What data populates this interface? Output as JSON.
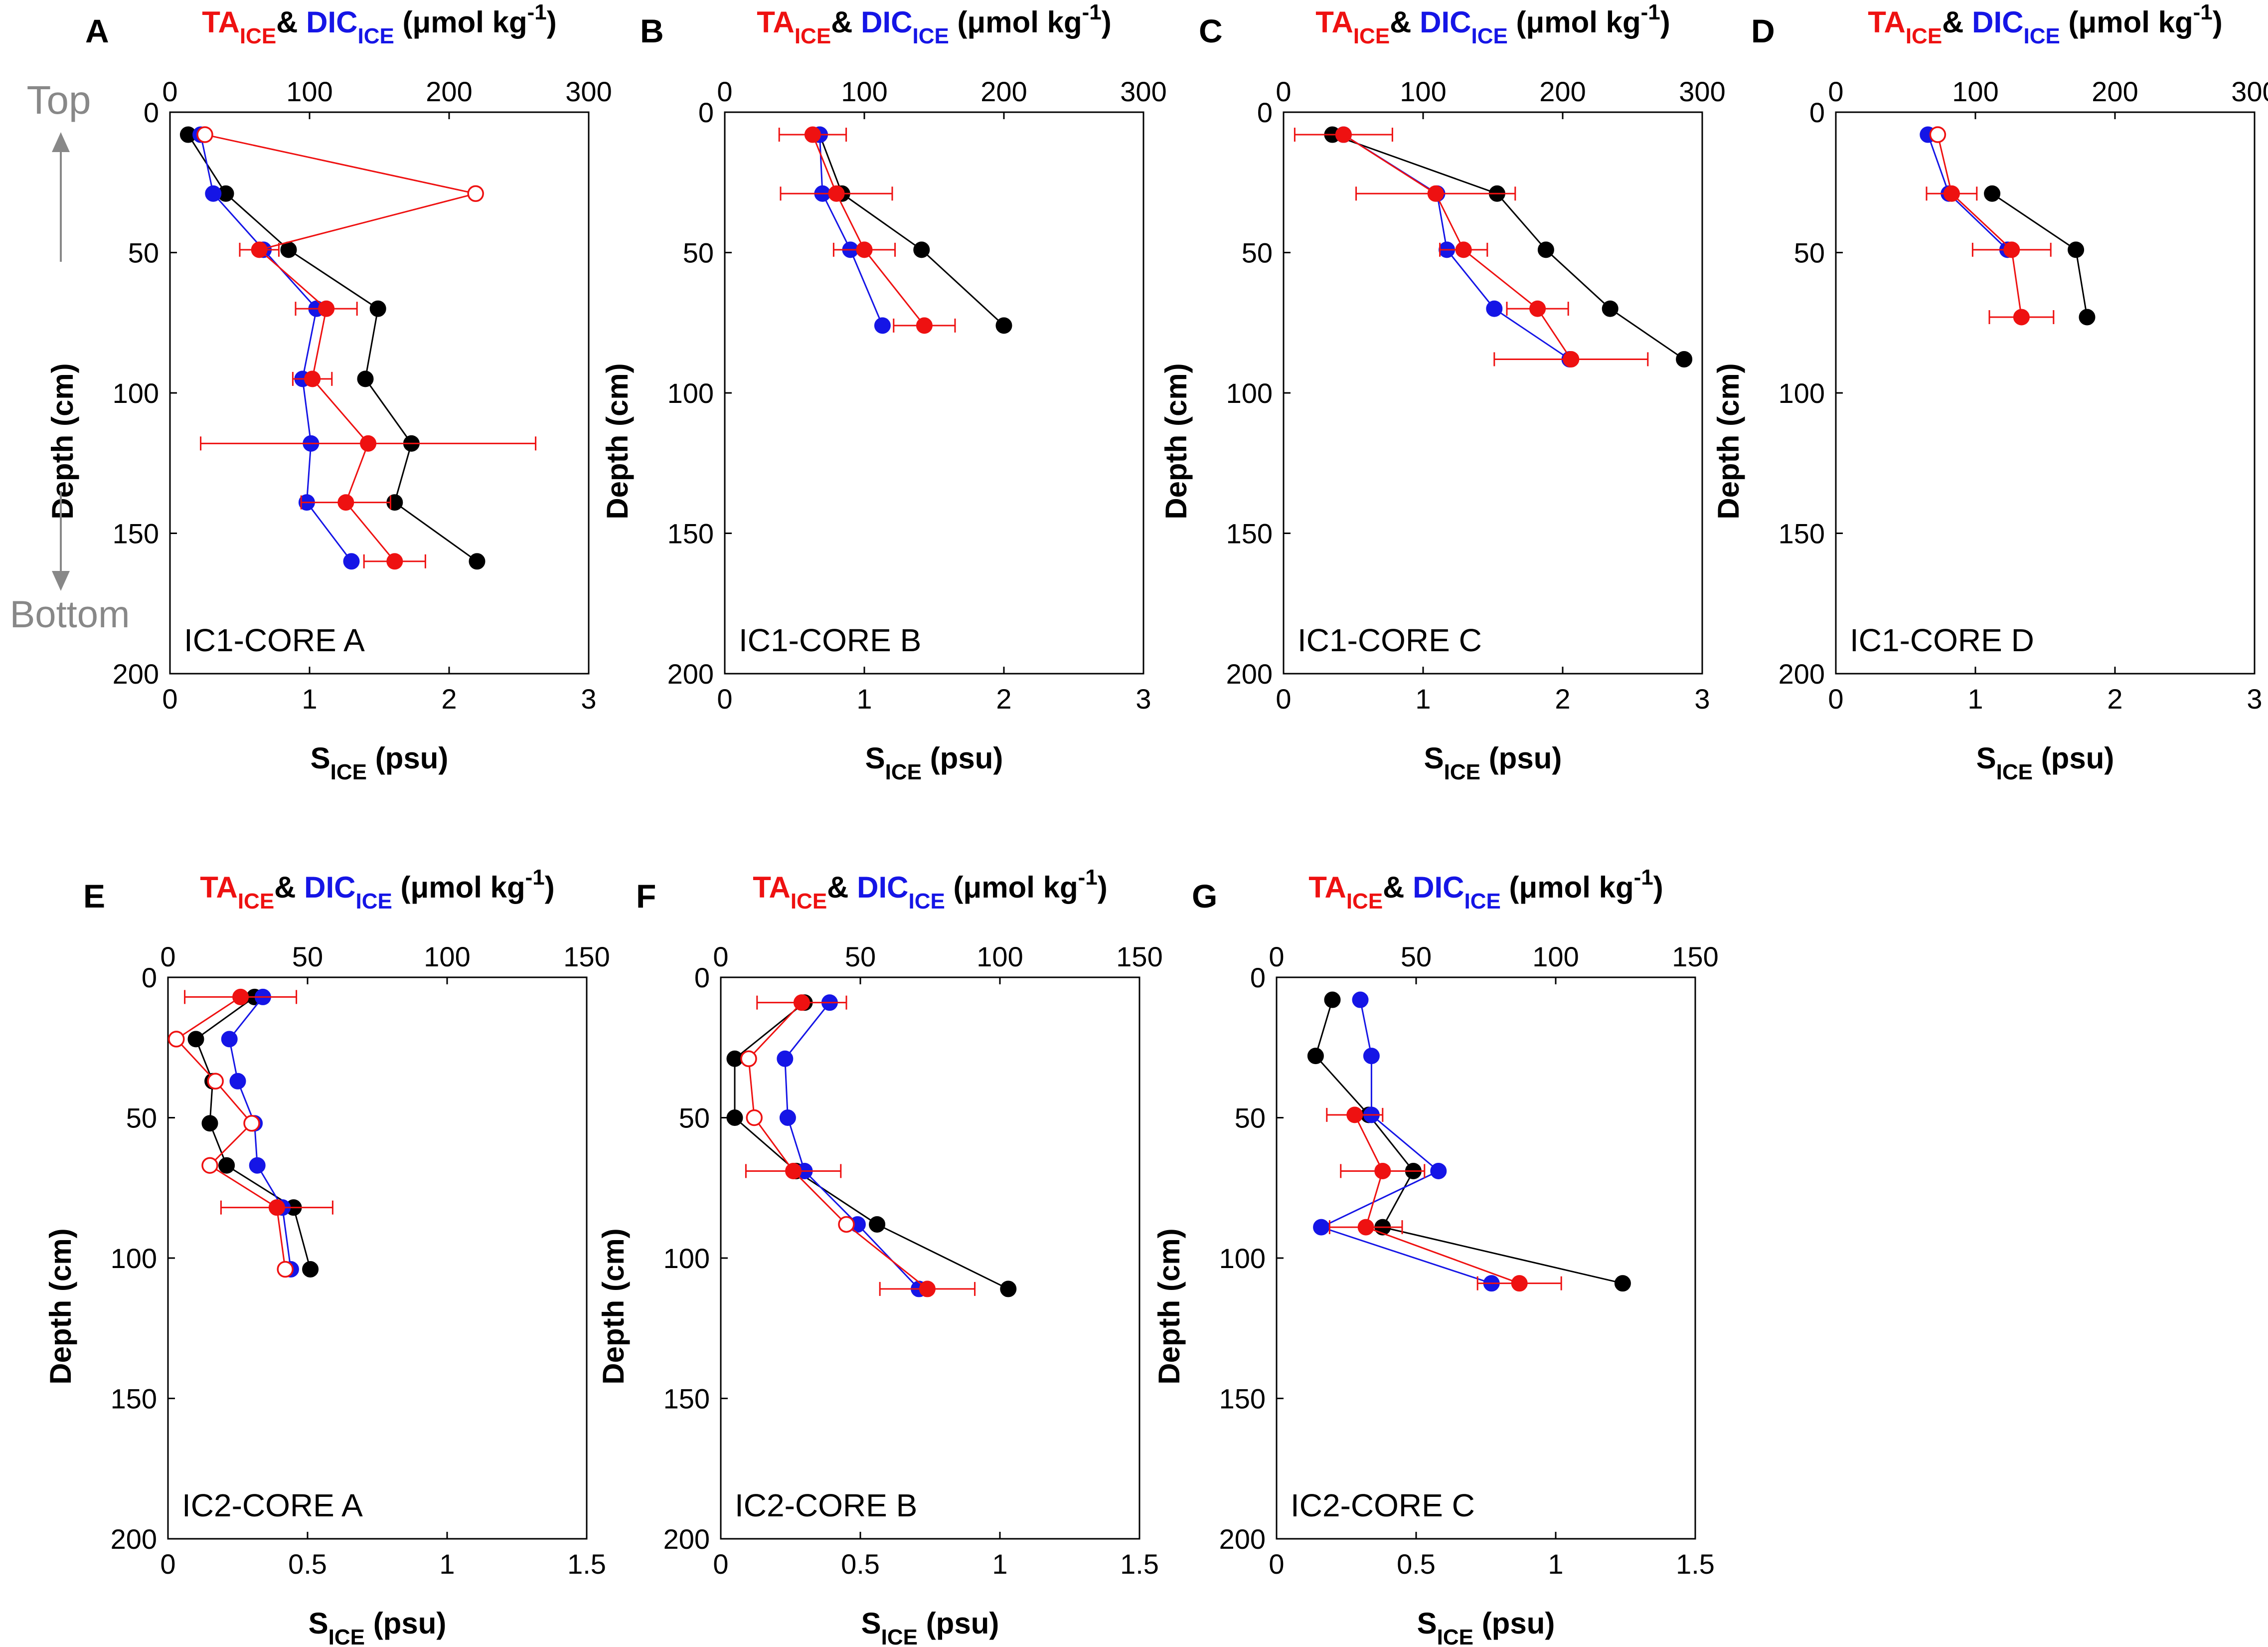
{
  "figure": {
    "top_axis_label": {
      "ta": "TA",
      "dic": "DIC",
      "sub": "ICE",
      "amp": "& ",
      "units": "(μmol kg",
      "units_exp": "-1",
      "units_close": ")"
    },
    "bottom_axis_label": {
      "main": "S",
      "sub": "ICE",
      "units": " (psu)"
    },
    "y_axis_label": "Depth (cm)",
    "direction": {
      "top": "Top",
      "bottom": "Bottom"
    },
    "colors": {
      "ta": "#ee1111",
      "dic": "#1515e6",
      "salinity": "#000000",
      "label_gray": "#888888"
    }
  },
  "chart_data": [
    {
      "id": "A",
      "panel_letter": "A",
      "type": "line",
      "core_label": "IC1-CORE A",
      "xlim_bottom": [
        0,
        3
      ],
      "xticks_bottom": [
        0,
        1,
        2,
        3
      ],
      "xlim_top": [
        0,
        300
      ],
      "xticks_top": [
        0,
        100,
        200,
        300
      ],
      "ylim": [
        0,
        200
      ],
      "yticks": [
        0,
        50,
        100,
        150,
        200
      ],
      "series": [
        {
          "name": "S_ICE",
          "color": "#000000",
          "points": [
            {
              "x": 0.13,
              "y": 8
            },
            {
              "x": 0.4,
              "y": 29
            },
            {
              "x": 0.85,
              "y": 49
            },
            {
              "x": 1.49,
              "y": 70
            },
            {
              "x": 1.4,
              "y": 95
            },
            {
              "x": 1.73,
              "y": 118
            },
            {
              "x": 1.61,
              "y": 139
            },
            {
              "x": 2.2,
              "y": 160
            }
          ]
        },
        {
          "name": "DIC_ICE",
          "color": "#1515e6",
          "points": [
            {
              "x": 22,
              "y": 8
            },
            {
              "x": 31,
              "y": 29
            },
            {
              "x": 67,
              "y": 49
            },
            {
              "x": 105,
              "y": 70
            },
            {
              "x": 95,
              "y": 95
            },
            {
              "x": 101,
              "y": 118
            },
            {
              "x": 98,
              "y": 139
            },
            {
              "x": 130,
              "y": 160
            }
          ]
        },
        {
          "name": "TA_ICE",
          "color": "#ee1111",
          "points": [
            {
              "x": 25,
              "y": 8,
              "open": true
            },
            {
              "x": 219,
              "y": 29,
              "open": true
            },
            {
              "x": 64,
              "y": 49,
              "err": 14
            },
            {
              "x": 112,
              "y": 70,
              "err": 22
            },
            {
              "x": 102,
              "y": 95,
              "err": 14
            },
            {
              "x": 142,
              "y": 118,
              "err": 120
            },
            {
              "x": 126,
              "y": 139,
              "err": 32
            },
            {
              "x": 161,
              "y": 160,
              "err": 22
            }
          ]
        }
      ]
    },
    {
      "id": "B",
      "panel_letter": "B",
      "type": "line",
      "core_label": "IC1-CORE B",
      "xlim_bottom": [
        0,
        3
      ],
      "xticks_bottom": [
        0,
        1,
        2,
        3
      ],
      "xlim_top": [
        0,
        300
      ],
      "xticks_top": [
        0,
        100,
        200,
        300
      ],
      "ylim": [
        0,
        200
      ],
      "yticks": [
        0,
        50,
        100,
        150,
        200
      ],
      "series": [
        {
          "name": "S_ICE",
          "color": "#000000",
          "points": [
            {
              "x": 0.68,
              "y": 8
            },
            {
              "x": 0.84,
              "y": 29
            },
            {
              "x": 1.41,
              "y": 49
            },
            {
              "x": 2.0,
              "y": 76
            }
          ]
        },
        {
          "name": "DIC_ICE",
          "color": "#1515e6",
          "points": [
            {
              "x": 68,
              "y": 8
            },
            {
              "x": 70,
              "y": 29
            },
            {
              "x": 90,
              "y": 49
            },
            {
              "x": 113,
              "y": 76
            }
          ]
        },
        {
          "name": "TA_ICE",
          "color": "#ee1111",
          "points": [
            {
              "x": 63,
              "y": 8,
              "err": 24
            },
            {
              "x": 80,
              "y": 29,
              "err": 40
            },
            {
              "x": 100,
              "y": 49,
              "err": 22
            },
            {
              "x": 143,
              "y": 76,
              "err": 22
            }
          ]
        }
      ]
    },
    {
      "id": "C",
      "panel_letter": "C",
      "type": "line",
      "core_label": "IC1-CORE C",
      "xlim_bottom": [
        0,
        3
      ],
      "xticks_bottom": [
        0,
        1,
        2,
        3
      ],
      "xlim_top": [
        0,
        300
      ],
      "xticks_top": [
        0,
        100,
        200,
        300
      ],
      "ylim": [
        0,
        200
      ],
      "yticks": [
        0,
        50,
        100,
        150,
        200
      ],
      "series": [
        {
          "name": "S_ICE",
          "color": "#000000",
          "points": [
            {
              "x": 0.35,
              "y": 8
            },
            {
              "x": 1.53,
              "y": 29
            },
            {
              "x": 1.88,
              "y": 49
            },
            {
              "x": 2.34,
              "y": 70
            },
            {
              "x": 2.87,
              "y": 88
            }
          ]
        },
        {
          "name": "DIC_ICE",
          "color": "#1515e6",
          "points": [
            {
              "x": 43,
              "y": 8
            },
            {
              "x": 110,
              "y": 29
            },
            {
              "x": 117,
              "y": 49
            },
            {
              "x": 151,
              "y": 70
            },
            {
              "x": 205,
              "y": 88
            }
          ]
        },
        {
          "name": "TA_ICE",
          "color": "#ee1111",
          "points": [
            {
              "x": 43,
              "y": 8,
              "err": 35
            },
            {
              "x": 109,
              "y": 29,
              "err": 57
            },
            {
              "x": 129,
              "y": 49,
              "err": 17
            },
            {
              "x": 182,
              "y": 70,
              "err": 22
            },
            {
              "x": 206,
              "y": 88,
              "err": 55
            }
          ]
        }
      ]
    },
    {
      "id": "D",
      "panel_letter": "D",
      "type": "line",
      "core_label": "IC1-CORE D",
      "xlim_bottom": [
        0,
        3
      ],
      "xticks_bottom": [
        0,
        1,
        2,
        3
      ],
      "xlim_top": [
        0,
        300
      ],
      "xticks_top": [
        0,
        100,
        200,
        300
      ],
      "ylim": [
        0,
        200
      ],
      "yticks": [
        0,
        50,
        100,
        150,
        200
      ],
      "series": [
        {
          "name": "S_ICE",
          "color": "#000000",
          "points": [
            {
              "x": 1.12,
              "y": 29
            },
            {
              "x": 1.72,
              "y": 49
            },
            {
              "x": 1.8,
              "y": 73
            }
          ]
        },
        {
          "name": "DIC_ICE",
          "color": "#1515e6",
          "points": [
            {
              "x": 66,
              "y": 8
            },
            {
              "x": 81,
              "y": 29
            },
            {
              "x": 123,
              "y": 49
            }
          ]
        },
        {
          "name": "TA_ICE",
          "color": "#ee1111",
          "points": [
            {
              "x": 73,
              "y": 8,
              "open": true
            },
            {
              "x": 83,
              "y": 29,
              "err": 18
            },
            {
              "x": 126,
              "y": 49,
              "err": 28
            },
            {
              "x": 133,
              "y": 73,
              "err": 23
            }
          ]
        }
      ]
    },
    {
      "id": "E",
      "panel_letter": "E",
      "type": "line",
      "core_label": "IC2-CORE A",
      "xlim_bottom": [
        0,
        1.5
      ],
      "xticks_bottom": [
        0,
        0.5,
        1,
        1.5
      ],
      "xlim_top": [
        0,
        150
      ],
      "xticks_top": [
        0,
        50,
        100,
        150
      ],
      "ylim": [
        0,
        200
      ],
      "yticks": [
        0,
        50,
        100,
        150,
        200
      ],
      "series": [
        {
          "name": "S_ICE",
          "color": "#000000",
          "points": [
            {
              "x": 0.31,
              "y": 7
            },
            {
              "x": 0.1,
              "y": 22
            },
            {
              "x": 0.16,
              "y": 37
            },
            {
              "x": 0.15,
              "y": 52
            },
            {
              "x": 0.21,
              "y": 67
            },
            {
              "x": 0.45,
              "y": 82
            },
            {
              "x": 0.51,
              "y": 104
            }
          ]
        },
        {
          "name": "DIC_ICE",
          "color": "#1515e6",
          "points": [
            {
              "x": 34,
              "y": 7
            },
            {
              "x": 22,
              "y": 22
            },
            {
              "x": 25,
              "y": 37
            },
            {
              "x": 31,
              "y": 52
            },
            {
              "x": 32,
              "y": 67
            },
            {
              "x": 41,
              "y": 82
            },
            {
              "x": 44,
              "y": 104
            }
          ]
        },
        {
          "name": "TA_ICE",
          "color": "#ee1111",
          "points": [
            {
              "x": 26,
              "y": 7,
              "err": 20
            },
            {
              "x": 3,
              "y": 22,
              "open": true
            },
            {
              "x": 17,
              "y": 37,
              "open": true
            },
            {
              "x": 30,
              "y": 52,
              "open": true
            },
            {
              "x": 15,
              "y": 67,
              "open": true
            },
            {
              "x": 39,
              "y": 82,
              "err": 20
            },
            {
              "x": 42,
              "y": 104,
              "open": true
            }
          ]
        }
      ]
    },
    {
      "id": "F",
      "panel_letter": "F",
      "type": "line",
      "core_label": "IC2-CORE B",
      "xlim_bottom": [
        0,
        1.5
      ],
      "xticks_bottom": [
        0,
        0.5,
        1,
        1.5
      ],
      "xlim_top": [
        0,
        150
      ],
      "xticks_top": [
        0,
        50,
        100,
        150
      ],
      "ylim": [
        0,
        200
      ],
      "yticks": [
        0,
        50,
        100,
        150,
        200
      ],
      "series": [
        {
          "name": "S_ICE",
          "color": "#000000",
          "points": [
            {
              "x": 0.3,
              "y": 9
            },
            {
              "x": 0.05,
              "y": 29
            },
            {
              "x": 0.05,
              "y": 50
            },
            {
              "x": 0.27,
              "y": 69
            },
            {
              "x": 0.56,
              "y": 88
            },
            {
              "x": 1.03,
              "y": 111
            }
          ]
        },
        {
          "name": "DIC_ICE",
          "color": "#1515e6",
          "points": [
            {
              "x": 39,
              "y": 9
            },
            {
              "x": 23,
              "y": 29
            },
            {
              "x": 24,
              "y": 50
            },
            {
              "x": 30,
              "y": 69
            },
            {
              "x": 49,
              "y": 88
            },
            {
              "x": 71,
              "y": 111
            }
          ]
        },
        {
          "name": "TA_ICE",
          "color": "#ee1111",
          "points": [
            {
              "x": 29,
              "y": 9,
              "err": 16
            },
            {
              "x": 10,
              "y": 29,
              "open": true
            },
            {
              "x": 12,
              "y": 50,
              "open": true
            },
            {
              "x": 26,
              "y": 69,
              "err": 17
            },
            {
              "x": 45,
              "y": 88,
              "open": true
            },
            {
              "x": 74,
              "y": 111,
              "err": 17
            }
          ]
        }
      ]
    },
    {
      "id": "G",
      "panel_letter": "G",
      "type": "line",
      "core_label": "IC2-CORE C",
      "xlim_bottom": [
        0,
        1.5
      ],
      "xticks_bottom": [
        0,
        0.5,
        1,
        1.5
      ],
      "xlim_top": [
        0,
        150
      ],
      "xticks_top": [
        0,
        50,
        100,
        150
      ],
      "ylim": [
        0,
        200
      ],
      "yticks": [
        0,
        50,
        100,
        150,
        200
      ],
      "series": [
        {
          "name": "S_ICE",
          "color": "#000000",
          "points": [
            {
              "x": 0.2,
              "y": 8
            },
            {
              "x": 0.14,
              "y": 28
            },
            {
              "x": 0.33,
              "y": 49
            },
            {
              "x": 0.49,
              "y": 69
            },
            {
              "x": 0.38,
              "y": 89
            },
            {
              "x": 1.24,
              "y": 109
            }
          ]
        },
        {
          "name": "DIC_ICE",
          "color": "#1515e6",
          "points": [
            {
              "x": 30,
              "y": 8
            },
            {
              "x": 34,
              "y": 28
            },
            {
              "x": 34,
              "y": 49
            },
            {
              "x": 58,
              "y": 69
            },
            {
              "x": 16,
              "y": 89
            },
            {
              "x": 77,
              "y": 109
            }
          ]
        },
        {
          "name": "TA_ICE",
          "color": "#ee1111",
          "points": [
            {
              "x": 28,
              "y": 49,
              "err": 10
            },
            {
              "x": 38,
              "y": 69,
              "err": 15
            },
            {
              "x": 32,
              "y": 89,
              "err": 13
            },
            {
              "x": 87,
              "y": 109,
              "err": 15
            }
          ]
        }
      ]
    }
  ]
}
